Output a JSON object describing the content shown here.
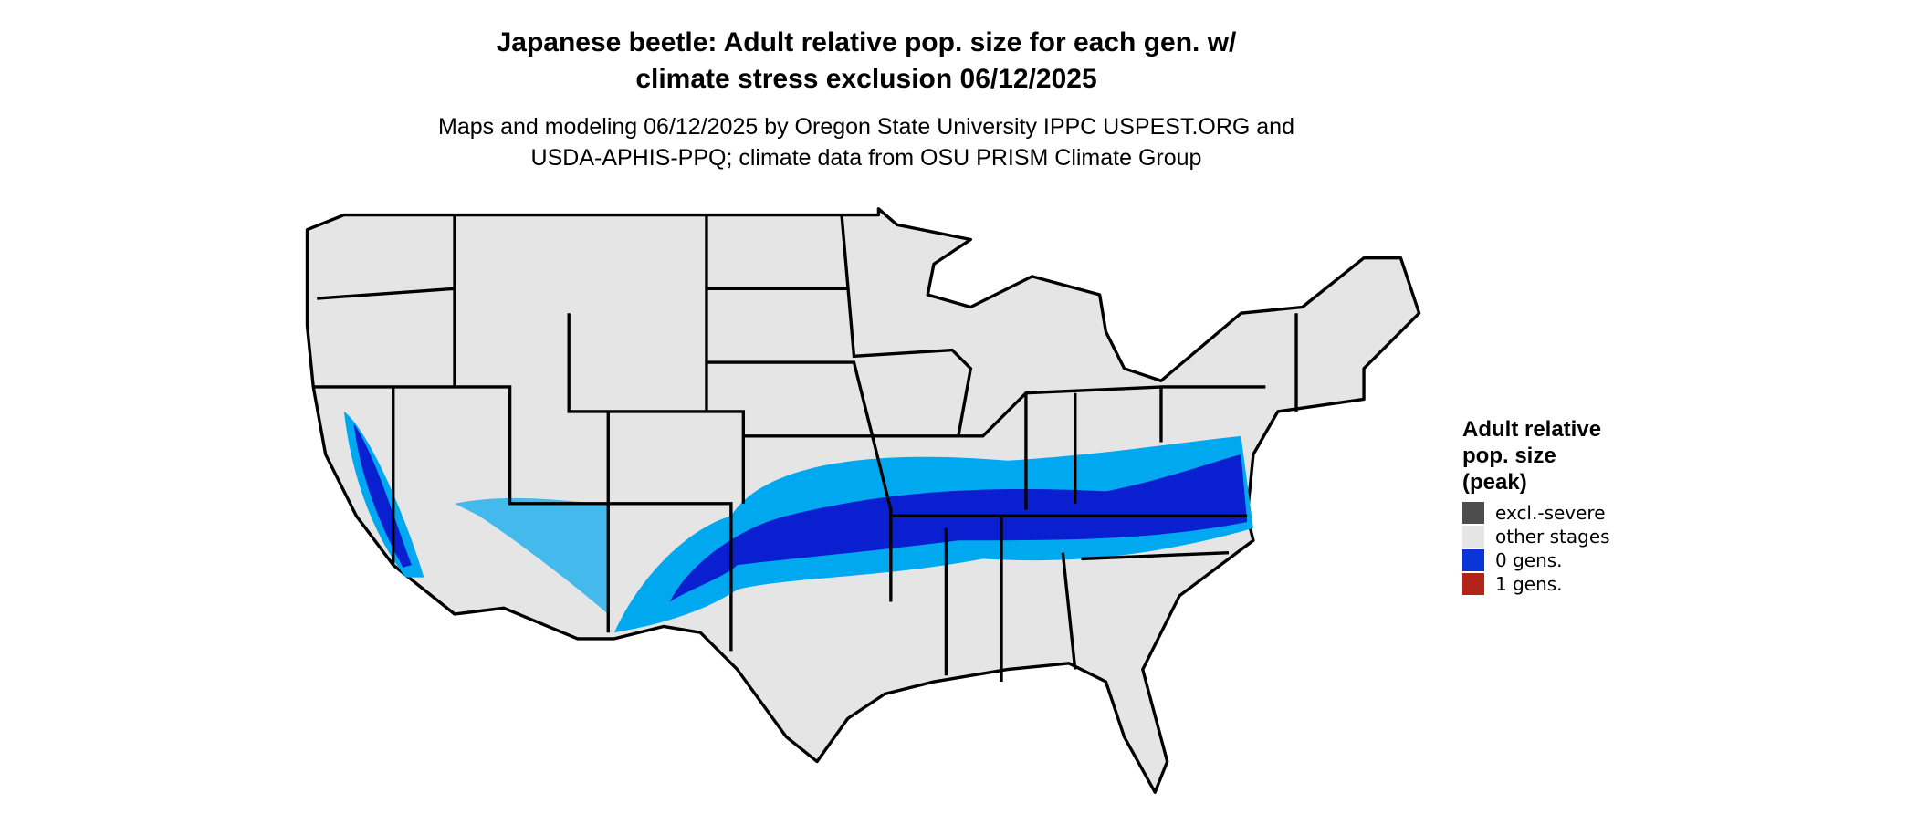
{
  "title_lines": [
    "Japanese beetle: Adult relative pop. size for each gen. w/",
    "climate stress exclusion 06/12/2025"
  ],
  "subtitle_lines": [
    "Maps and modeling 06/12/2025 by Oregon State University IPPC USPEST.ORG and",
    "USDA-APHIS-PPQ; climate data from OSU PRISM Climate Group"
  ],
  "legend": {
    "title_lines": [
      "Adult relative",
      "pop. size",
      "(peak)"
    ],
    "items": [
      {
        "label": "excl.-severe",
        "color": "#4d4d4d"
      },
      {
        "label": "other stages",
        "color": "#e5e5e5"
      },
      {
        "label": "0 gens.",
        "color": "#0a36d8"
      },
      {
        "label": "1 gens.",
        "color": "#b2231a"
      }
    ]
  }
}
